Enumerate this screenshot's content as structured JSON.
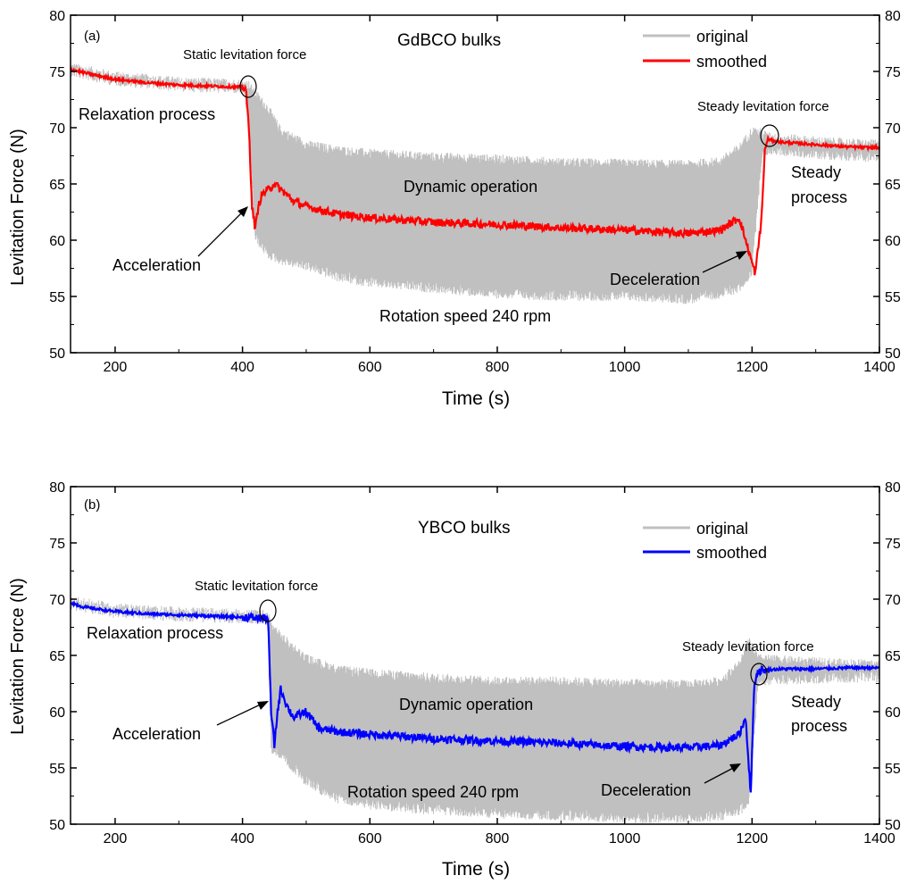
{
  "chart_data": [
    {
      "type": "line",
      "panel_label": "(a)",
      "title": "GdBCO bulks",
      "xlabel": "Time (s)",
      "ylabel": "Levitation Force (N)",
      "xlim": [
        130,
        1400
      ],
      "ylim": [
        50,
        80
      ],
      "x_ticks": [
        "200",
        "400",
        "600",
        "800",
        "1000",
        "1200",
        "1400"
      ],
      "y_ticks": [
        "50",
        "55",
        "60",
        "65",
        "70",
        "75",
        "80"
      ],
      "legend_position": "top-right",
      "series": [
        {
          "name": "original",
          "color": "#c0c0c0",
          "x": [
            130,
            200,
            300,
            400,
            410,
            420,
            440,
            460,
            500,
            550,
            600,
            700,
            800,
            900,
            1000,
            1100,
            1150,
            1180,
            1200,
            1215,
            1225,
            1300,
            1400
          ],
          "y": [
            75.2,
            74.4,
            73.9,
            73.7,
            73.6,
            72.8,
            71.5,
            69.5,
            68.3,
            67.8,
            67.5,
            67.2,
            67.0,
            66.7,
            66.6,
            66.5,
            66.8,
            68.0,
            69.5,
            69.3,
            69.0,
            68.6,
            68.3
          ],
          "low": [
            130,
            200,
            300,
            400,
            410,
            420,
            440,
            460,
            500,
            550,
            600,
            700,
            800,
            900,
            1000,
            1100,
            1150,
            1180,
            1200,
            1215,
            1225,
            1300,
            1400
          ],
          "y_low": [
            75.2,
            74.4,
            73.9,
            73.7,
            71.0,
            60.5,
            59.0,
            58.5,
            58.0,
            57.0,
            56.5,
            56.0,
            55.5,
            55.3,
            55.3,
            55.0,
            55.5,
            56.0,
            57.5,
            67.5,
            68.3,
            67.9,
            67.6
          ]
        },
        {
          "name": "smoothed",
          "color": "#ff0000",
          "x": [
            130,
            150,
            200,
            250,
            300,
            350,
            400,
            405,
            410,
            415,
            420,
            425,
            430,
            440,
            450,
            460,
            480,
            500,
            550,
            600,
            700,
            800,
            900,
            1000,
            1100,
            1150,
            1180,
            1195,
            1205,
            1215,
            1220,
            1225,
            1230,
            1250,
            1300,
            1350,
            1400
          ],
          "y": [
            75.2,
            74.9,
            74.3,
            74.0,
            73.8,
            73.7,
            73.6,
            73.5,
            70.0,
            63.0,
            61.0,
            63.0,
            64.0,
            64.5,
            65.0,
            64.5,
            63.5,
            63.0,
            62.3,
            62.0,
            61.6,
            61.4,
            61.1,
            60.9,
            60.6,
            60.9,
            62.0,
            59.0,
            57.0,
            62.0,
            68.0,
            69.0,
            68.9,
            68.7,
            68.5,
            68.3,
            68.2
          ]
        }
      ],
      "annotations": [
        "Static levitation force",
        "Relaxation process",
        "Dynamic operation",
        "Acceleration",
        "Deceleration",
        "Rotation speed 240 rpm",
        "Steady levitation force",
        "Steady",
        "process"
      ]
    },
    {
      "type": "line",
      "panel_label": "(b)",
      "title": "YBCO bulks",
      "xlabel": "Time (s)",
      "ylabel": "Levitation Force (N)",
      "xlim": [
        130,
        1400
      ],
      "ylim": [
        50,
        80
      ],
      "x_ticks": [
        "200",
        "400",
        "600",
        "800",
        "1000",
        "1200",
        "1400"
      ],
      "y_ticks": [
        "50",
        "55",
        "60",
        "65",
        "70",
        "75",
        "80"
      ],
      "legend_position": "top-right",
      "series": [
        {
          "name": "original",
          "color": "#c0c0c0",
          "x": [
            130,
            200,
            300,
            400,
            440,
            445,
            460,
            500,
            550,
            600,
            700,
            800,
            900,
            1000,
            1100,
            1150,
            1180,
            1195,
            1210,
            1300,
            1400
          ],
          "y": [
            69.7,
            69.0,
            68.7,
            68.5,
            68.4,
            67.5,
            66.5,
            64.5,
            63.5,
            63.2,
            62.8,
            62.5,
            62.5,
            62.3,
            62.2,
            62.5,
            64.0,
            66.0,
            64.5,
            64.2,
            64.0
          ],
          "y_low": [
            69.7,
            69.0,
            68.7,
            68.5,
            68.4,
            57.0,
            56.5,
            54.0,
            52.5,
            52.0,
            51.5,
            51.2,
            51.0,
            50.8,
            50.8,
            51.0,
            51.5,
            52.0,
            63.0,
            63.2,
            63.3
          ]
        },
        {
          "name": "smoothed",
          "color": "#0000ff",
          "x": [
            130,
            150,
            200,
            250,
            300,
            350,
            400,
            430,
            440,
            445,
            450,
            455,
            460,
            470,
            480,
            500,
            520,
            550,
            600,
            700,
            800,
            900,
            1000,
            1100,
            1150,
            1180,
            1190,
            1198,
            1203,
            1208,
            1215,
            1250,
            1300,
            1350,
            1400
          ],
          "y": [
            69.7,
            69.3,
            68.9,
            68.7,
            68.6,
            68.5,
            68.4,
            68.3,
            68.3,
            60.0,
            57.0,
            60.0,
            62.0,
            60.5,
            59.5,
            60.0,
            58.5,
            58.2,
            58.0,
            57.6,
            57.4,
            57.2,
            56.9,
            56.8,
            57.0,
            58.0,
            59.5,
            52.5,
            62.0,
            63.5,
            63.7,
            63.8,
            63.8,
            63.9,
            63.9
          ]
        }
      ],
      "annotations": [
        "Static levitation force",
        "Relaxation process",
        "Dynamic operation",
        "Acceleration",
        "Deceleration",
        "Rotation speed 240 rpm",
        "Steady levitation force",
        "Steady",
        "process"
      ]
    }
  ]
}
